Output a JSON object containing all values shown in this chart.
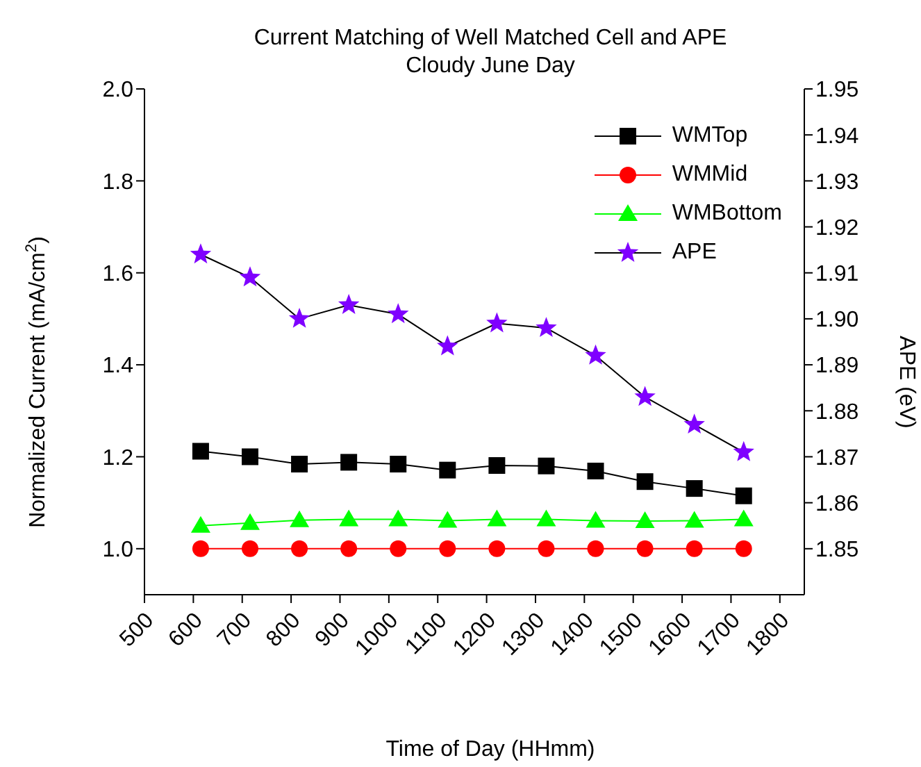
{
  "chart_data": {
    "type": "line",
    "title": "Current Matching of Well Matched Cell and APE",
    "subtitle": "Cloudy June Day",
    "xlabel": "Time of Day (HHmm)",
    "ylabel": "Normalized Current (mA/cm$^{2}$)",
    "y2label": "APE (eV)",
    "x": [
      615,
      716,
      817,
      918,
      1019,
      1120,
      1221,
      1322,
      1423,
      1524,
      1625,
      1726
    ],
    "series": [
      {
        "name": "WMTop",
        "color": "#000000",
        "marker": "square",
        "values": [
          1.212,
          1.2,
          1.184,
          1.188,
          1.184,
          1.171,
          1.181,
          1.18,
          1.169,
          1.146,
          1.131,
          1.115
        ]
      },
      {
        "name": "WMMid",
        "color": "#ff0000",
        "marker": "circle",
        "values": [
          1.0,
          1.0,
          1.0,
          1.0,
          1.0,
          1.0,
          1.0,
          1.0,
          1.0,
          1.0,
          1.0,
          1.0
        ]
      },
      {
        "name": "WMBottom",
        "color": "#00ff00",
        "marker": "triangle",
        "values": [
          1.05,
          1.056,
          1.062,
          1.064,
          1.064,
          1.061,
          1.064,
          1.064,
          1.061,
          1.06,
          1.061,
          1.064
        ]
      },
      {
        "name": "APE",
        "color": "#7f00ff",
        "marker": "star",
        "axis": "y2",
        "values": [
          1.914,
          1.909,
          1.9,
          1.903,
          1.901,
          1.894,
          1.899,
          1.898,
          1.892,
          1.883,
          1.877,
          1.871
        ]
      }
    ],
    "xlim": [
      500,
      1850
    ],
    "xticks": [
      500,
      600,
      700,
      800,
      900,
      1000,
      1100,
      1200,
      1300,
      1400,
      1500,
      1600,
      1700,
      1800
    ],
    "ylim": [
      0.9,
      2.0
    ],
    "yticks": [
      {
        "value": 1,
        "label": "1.0"
      },
      1.2,
      1.4,
      1.6,
      1.8,
      {
        "value": 2,
        "label": "2.0"
      }
    ],
    "y2lim": [
      1.84,
      1.95
    ],
    "y2ticks": [
      1.85,
      1.86,
      1.87,
      1.88,
      1.89,
      {
        "value": 1.9,
        "label": "1.90"
      },
      1.91,
      1.92,
      1.93,
      1.94,
      1.95
    ],
    "legend": "top right",
    "grid": false
  }
}
